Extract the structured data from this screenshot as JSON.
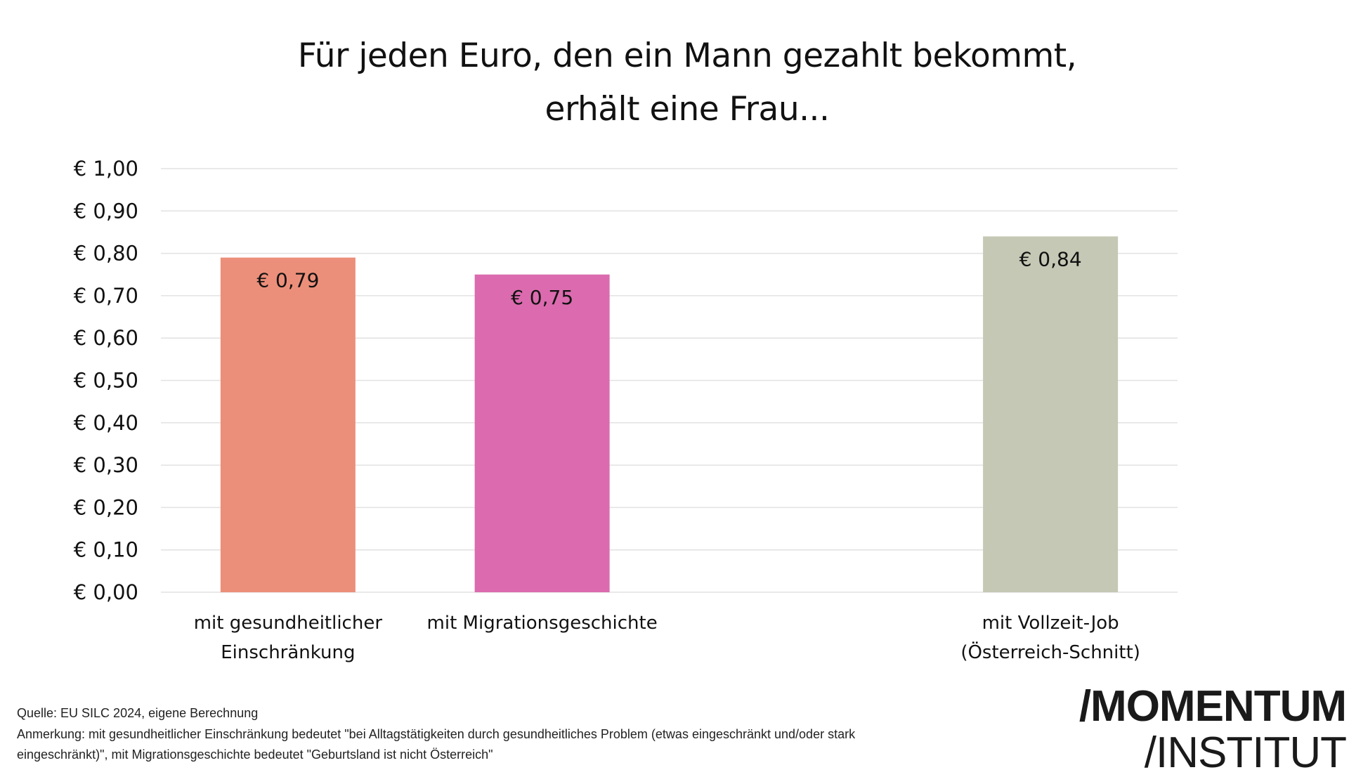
{
  "chart_data": {
    "type": "bar",
    "title_lines": [
      "Für jeden Euro, den ein Mann gezahlt bekommt,",
      "erhält eine Frau..."
    ],
    "categories": [
      [
        "mit gesundheitlicher",
        "Einschränkung"
      ],
      [
        "mit Migrationsgeschichte"
      ],
      [],
      [
        "mit Vollzeit-Job",
        "(Österreich-Schnitt)"
      ]
    ],
    "values": [
      0.79,
      0.75,
      null,
      0.84
    ],
    "data_labels": [
      "€ 0,79",
      "€ 0,75",
      "",
      "€ 0,84"
    ],
    "colors": [
      "#EC8F7A",
      "#DB6BAE",
      "",
      "#C5C8B4"
    ],
    "ylim": [
      0,
      1.0
    ],
    "yticks": [
      "€ 0,00",
      "€ 0,10",
      "€ 0,20",
      "€ 0,30",
      "€ 0,40",
      "€ 0,50",
      "€ 0,60",
      "€ 0,70",
      "€ 0,80",
      "€ 0,90",
      "€ 1,00"
    ],
    "grid": true,
    "gridColor": "#E2E2E2"
  },
  "footer": {
    "source": "Quelle: EU SILC 2024, eigene Berechnung",
    "note_line1": "Anmerkung: mit gesundheitlicher Einschränkung bedeutet \"bei Alltagstätigkeiten durch gesundheitliches Problem (etwas eingeschränkt und/oder stark",
    "note_line2": "eingeschränkt)\", mit Migrationsgeschichte bedeutet \"Geburtsland ist nicht Österreich\""
  },
  "logo": {
    "line1": "/MOMENTUM",
    "line2": "/INSTITUT"
  }
}
